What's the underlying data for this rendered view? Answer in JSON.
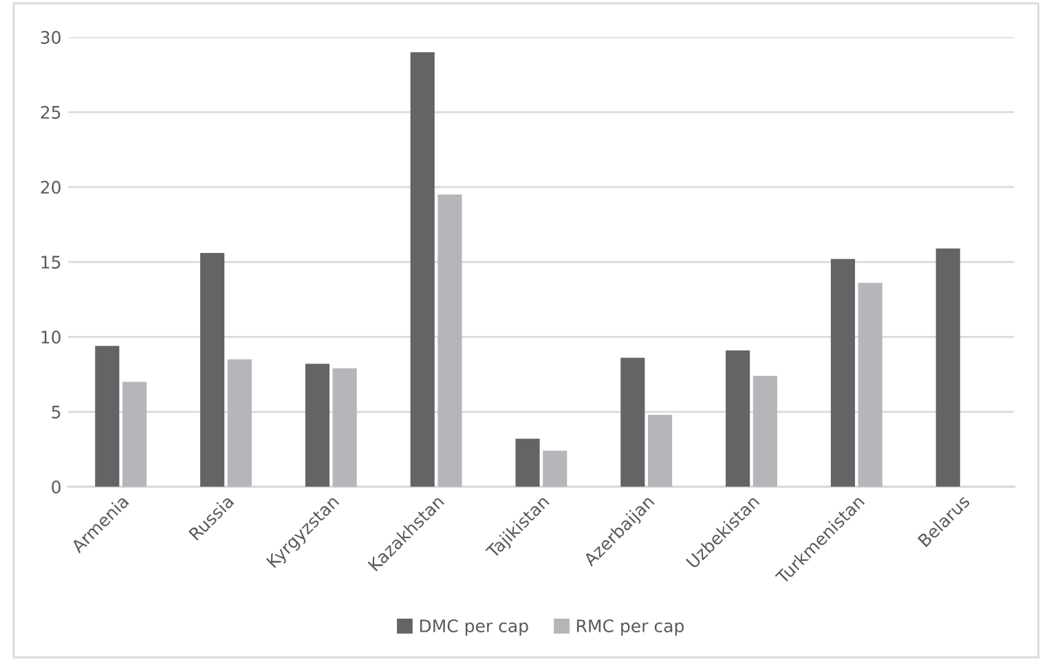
{
  "chart_data": {
    "type": "bar",
    "categories": [
      "Armenia",
      "Russia",
      "Kyrgyzstan",
      "Kazakhstan",
      "Tajikistan",
      "Azerbaijan",
      "Uzbekistan",
      "Turkmenistan",
      "Belarus"
    ],
    "series": [
      {
        "name": "DMC per cap",
        "color": "#646466",
        "values": [
          9.4,
          15.6,
          8.2,
          29.0,
          3.2,
          8.6,
          9.1,
          15.2,
          15.9
        ]
      },
      {
        "name": "RMC per cap",
        "color": "#b5b6b9",
        "values": [
          7.0,
          8.5,
          7.9,
          19.5,
          2.4,
          4.8,
          7.4,
          13.6,
          0
        ]
      }
    ],
    "ylim": [
      0,
      30
    ],
    "yticks": [
      0,
      5,
      10,
      15,
      20,
      25,
      30
    ],
    "grid": "y",
    "legend": "bottom"
  }
}
